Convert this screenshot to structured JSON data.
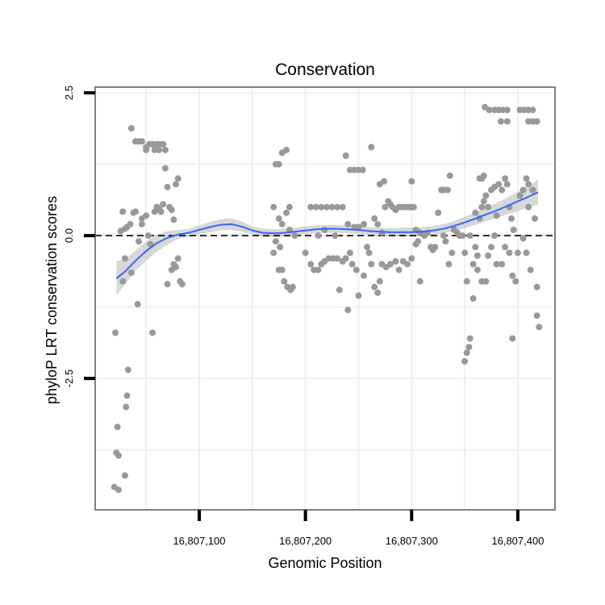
{
  "chart_data": {
    "type": "scatter",
    "title": "Conservation",
    "xlabel": "Genomic Position",
    "ylabel": "phyloP LRT conservation scores",
    "xlim": [
      16807002,
      16807435
    ],
    "ylim": [
      -4.8,
      2.6
    ],
    "xticks": [
      16807100,
      16807200,
      16807300,
      16807400
    ],
    "xtick_labels": [
      "16,807,100",
      "16,807,200",
      "16,807,300",
      "16,807,400"
    ],
    "yticks": [
      -2.5,
      0.0,
      2.5
    ],
    "ytick_labels": [
      "-2.5",
      "0.0",
      "2.5"
    ],
    "grid": true,
    "reference_line": {
      "y": 0,
      "style": "dashed",
      "color": "#000000"
    },
    "colors": {
      "points": "#999999",
      "smooth": "#3366ff",
      "ribbon": "#bebebe",
      "frame": "#7f7f7f",
      "grid": "#f0f0f0"
    },
    "series": [
      {
        "kind": "points",
        "points": [
          [
            16807020,
            -4.4
          ],
          [
            16807024,
            -4.45
          ],
          [
            16807021,
            -1.7
          ],
          [
            16807023,
            -3.35
          ],
          [
            16807022,
            -3.8
          ],
          [
            16807024,
            -3.85
          ],
          [
            16807030,
            -4.2
          ],
          [
            16807031,
            -3.0
          ],
          [
            16807032,
            -2.8
          ],
          [
            16807033,
            -2.35
          ],
          [
            16807028,
            0.42
          ],
          [
            16807026,
            0.08
          ],
          [
            16807030,
            0.12
          ],
          [
            16807032,
            0.15
          ],
          [
            16807035,
            0.2
          ],
          [
            16807030,
            -0.4
          ],
          [
            16807028,
            -0.8
          ],
          [
            16807036,
            -0.65
          ],
          [
            16807038,
            0.4
          ],
          [
            16807040,
            0.42
          ],
          [
            16807036,
            1.88
          ],
          [
            16807040,
            1.65
          ],
          [
            16807043,
            1.65
          ],
          [
            16807046,
            1.65
          ],
          [
            16807050,
            1.55
          ],
          [
            16807053,
            1.6
          ],
          [
            16807056,
            1.6
          ],
          [
            16807060,
            1.6
          ],
          [
            16807063,
            1.6
          ],
          [
            16807066,
            1.6
          ],
          [
            16807050,
            1.5
          ],
          [
            16807058,
            1.5
          ],
          [
            16807062,
            1.5
          ],
          [
            16807068,
            1.5
          ],
          [
            16807042,
            -1.2
          ],
          [
            16807043,
            -0.1
          ],
          [
            16807046,
            0.2
          ],
          [
            16807046,
            0.3
          ],
          [
            16807050,
            0.35
          ],
          [
            16807052,
            0.0
          ],
          [
            16807054,
            -0.15
          ],
          [
            16807056,
            -1.7
          ],
          [
            16807058,
            0.42
          ],
          [
            16807060,
            0.5
          ],
          [
            16807062,
            0.48
          ],
          [
            16807064,
            0.42
          ],
          [
            16807066,
            0.55
          ],
          [
            16807068,
            1.18
          ],
          [
            16807070,
            0.85
          ],
          [
            16807072,
            0.5
          ],
          [
            16807074,
            0.45
          ],
          [
            16807076,
            0.28
          ],
          [
            16807070,
            -0.85
          ],
          [
            16807074,
            -0.6
          ],
          [
            16807076,
            -0.5
          ],
          [
            16807078,
            -0.55
          ],
          [
            16807080,
            -0.4
          ],
          [
            16807082,
            -0.8
          ],
          [
            16807084,
            -0.85
          ],
          [
            16807078,
            0.9
          ],
          [
            16807080,
            1.0
          ],
          [
            16807172,
            1.25
          ],
          [
            16807175,
            1.25
          ],
          [
            16807178,
            1.45
          ],
          [
            16807182,
            1.5
          ],
          [
            16807170,
            0.5
          ],
          [
            16807175,
            0.3
          ],
          [
            16807178,
            0.2
          ],
          [
            16807182,
            0.4
          ],
          [
            16807185,
            0.5
          ],
          [
            16807170,
            -0.3
          ],
          [
            16807175,
            -0.6
          ],
          [
            16807178,
            -0.6
          ],
          [
            16807180,
            -0.8
          ],
          [
            16807183,
            -0.9
          ],
          [
            16807186,
            -0.95
          ],
          [
            16807188,
            -0.9
          ],
          [
            16807172,
            -0.1
          ],
          [
            16807176,
            -0.2
          ],
          [
            16807185,
            0.1
          ],
          [
            16807190,
            0.0
          ],
          [
            16807200,
            -0.3
          ],
          [
            16807205,
            0.5
          ],
          [
            16807210,
            0.5
          ],
          [
            16807215,
            0.5
          ],
          [
            16807220,
            0.5
          ],
          [
            16807225,
            0.5
          ],
          [
            16807230,
            0.5
          ],
          [
            16807235,
            0.5
          ],
          [
            16807205,
            -0.5
          ],
          [
            16807208,
            -0.6
          ],
          [
            16807212,
            -0.6
          ],
          [
            16807215,
            -0.5
          ],
          [
            16807218,
            -0.45
          ],
          [
            16807222,
            -0.4
          ],
          [
            16807226,
            -0.4
          ],
          [
            16807230,
            -0.4
          ],
          [
            16807235,
            -0.45
          ],
          [
            16807238,
            -0.4
          ],
          [
            16807242,
            -0.3
          ],
          [
            16807212,
            0.0
          ],
          [
            16807218,
            0.1
          ],
          [
            16807228,
            0.0
          ],
          [
            16807232,
            -0.95
          ],
          [
            16807240,
            -1.3
          ],
          [
            16807238,
            1.4
          ],
          [
            16807242,
            1.15
          ],
          [
            16807246,
            1.15
          ],
          [
            16807250,
            1.15
          ],
          [
            16807254,
            1.15
          ],
          [
            16807240,
            0.2
          ],
          [
            16807246,
            0.15
          ],
          [
            16807250,
            0.15
          ],
          [
            16807255,
            0.2
          ],
          [
            16807244,
            -0.5
          ],
          [
            16807248,
            -0.6
          ],
          [
            16807250,
            -1.05
          ],
          [
            16807255,
            -0.7
          ],
          [
            16807258,
            -0.2
          ],
          [
            16807260,
            -0.3
          ],
          [
            16807262,
            -0.5
          ],
          [
            16807265,
            -0.9
          ],
          [
            16807268,
            -1.0
          ],
          [
            16807270,
            -0.8
          ],
          [
            16807262,
            1.55
          ],
          [
            16807265,
            0.3
          ],
          [
            16807268,
            0.2
          ],
          [
            16807272,
            0.05
          ],
          [
            16807275,
            0.5
          ],
          [
            16807278,
            0.6
          ],
          [
            16807280,
            0.55
          ],
          [
            16807282,
            0.5
          ],
          [
            16807285,
            0.45
          ],
          [
            16807288,
            0.5
          ],
          [
            16807290,
            0.5
          ],
          [
            16807292,
            0.5
          ],
          [
            16807295,
            0.5
          ],
          [
            16807298,
            0.5
          ],
          [
            16807300,
            0.5
          ],
          [
            16807302,
            0.5
          ],
          [
            16807270,
            0.9
          ],
          [
            16807274,
            0.95
          ],
          [
            16807300,
            0.95
          ],
          [
            16807272,
            -0.5
          ],
          [
            16807276,
            -0.55
          ],
          [
            16807280,
            -0.5
          ],
          [
            16807285,
            -0.45
          ],
          [
            16807288,
            -0.6
          ],
          [
            16807292,
            -0.45
          ],
          [
            16807296,
            -0.5
          ],
          [
            16807300,
            -0.4
          ],
          [
            16807304,
            -0.15
          ],
          [
            16807306,
            -0.1
          ],
          [
            16807308,
            -0.8
          ],
          [
            16807304,
            0.1
          ],
          [
            16807308,
            0.05
          ],
          [
            16807312,
            0.0
          ],
          [
            16807315,
            0.05
          ],
          [
            16807318,
            -0.2
          ],
          [
            16807320,
            -0.25
          ],
          [
            16807322,
            -0.2
          ],
          [
            16807325,
            0.4
          ],
          [
            16807328,
            0.8
          ],
          [
            16807330,
            0.8
          ],
          [
            16807334,
            0.8
          ],
          [
            16807336,
            1.05
          ],
          [
            16807330,
            0.0
          ],
          [
            16807332,
            -0.1
          ],
          [
            16807335,
            -0.5
          ],
          [
            16807338,
            -0.3
          ],
          [
            16807340,
            0.1
          ],
          [
            16807343,
            0.05
          ],
          [
            16807345,
            0.0
          ],
          [
            16807348,
            0.0
          ],
          [
            16807350,
            -2.2
          ],
          [
            16807352,
            -2.05
          ],
          [
            16807354,
            -1.95
          ],
          [
            16807355,
            -1.8
          ],
          [
            16807350,
            -0.3
          ],
          [
            16807352,
            -0.8
          ],
          [
            16807355,
            0.0
          ],
          [
            16807358,
            -0.5
          ],
          [
            16807360,
            -0.2
          ],
          [
            16807362,
            -0.35
          ],
          [
            16807358,
            -1.1
          ],
          [
            16807362,
            -0.6
          ],
          [
            16807360,
            0.4
          ],
          [
            16807364,
            0.3
          ],
          [
            16807366,
            0.5
          ],
          [
            16807368,
            0.6
          ],
          [
            16807370,
            0.7
          ],
          [
            16807364,
            1.0
          ],
          [
            16807366,
            1.0
          ],
          [
            16807368,
            1.05
          ],
          [
            16807372,
            -0.35
          ],
          [
            16807375,
            -0.2
          ],
          [
            16807378,
            0.0
          ],
          [
            16807380,
            0.35
          ],
          [
            16807366,
            -0.8
          ],
          [
            16807370,
            -0.8
          ],
          [
            16807372,
            0.5
          ],
          [
            16807375,
            0.8
          ],
          [
            16807378,
            0.85
          ],
          [
            16807382,
            0.9
          ],
          [
            16807385,
            0.8
          ],
          [
            16807388,
            1.0
          ],
          [
            16807390,
            0.9
          ],
          [
            16807392,
            0.5
          ],
          [
            16807394,
            0.3
          ],
          [
            16807396,
            0.1
          ],
          [
            16807380,
            -0.5
          ],
          [
            16807385,
            -0.5
          ],
          [
            16807388,
            -0.2
          ],
          [
            16807392,
            -0.3
          ],
          [
            16807395,
            -0.7
          ],
          [
            16807398,
            -0.8
          ],
          [
            16807400,
            -0.3
          ],
          [
            16807402,
            0.7
          ],
          [
            16807405,
            0.8
          ],
          [
            16807408,
            1.0
          ],
          [
            16807410,
            0.9
          ],
          [
            16807405,
            -0.05
          ],
          [
            16807408,
            -0.3
          ],
          [
            16807410,
            0.5
          ],
          [
            16807414,
            0.8
          ],
          [
            16807416,
            0.3
          ],
          [
            16807418,
            -1.4
          ],
          [
            16807420,
            -1.6
          ],
          [
            16807418,
            -0.9
          ],
          [
            16807395,
            -1.8
          ],
          [
            16807412,
            -0.6
          ],
          [
            16807369,
            2.25
          ],
          [
            16807373,
            2.2
          ],
          [
            16807378,
            2.2
          ],
          [
            16807382,
            2.2
          ],
          [
            16807386,
            2.2
          ],
          [
            16807390,
            2.2
          ],
          [
            16807402,
            2.2
          ],
          [
            16807406,
            2.2
          ],
          [
            16807410,
            2.2
          ],
          [
            16807414,
            2.2
          ],
          [
            16807384,
            2.0
          ],
          [
            16807390,
            2.0
          ],
          [
            16807410,
            2.0
          ],
          [
            16807414,
            2.0
          ],
          [
            16807418,
            2.0
          ]
        ]
      },
      {
        "kind": "smooth",
        "x": [
          16807022,
          16807030,
          16807040,
          16807050,
          16807060,
          16807070,
          16807080,
          16807090,
          16807100,
          16807110,
          16807120,
          16807130,
          16807140,
          16807150,
          16807160,
          16807170,
          16807180,
          16807190,
          16807200,
          16807210,
          16807220,
          16807230,
          16807240,
          16807250,
          16807260,
          16807270,
          16807280,
          16807290,
          16807300,
          16807310,
          16807320,
          16807330,
          16807340,
          16807350,
          16807360,
          16807370,
          16807380,
          16807390,
          16807400,
          16807410,
          16807419
        ],
        "y": [
          -0.75,
          -0.63,
          -0.44,
          -0.27,
          -0.13,
          -0.04,
          0.02,
          0.05,
          0.1,
          0.15,
          0.19,
          0.2,
          0.16,
          0.09,
          0.05,
          0.04,
          0.05,
          0.07,
          0.09,
          0.11,
          0.12,
          0.12,
          0.11,
          0.1,
          0.08,
          0.07,
          0.06,
          0.06,
          0.06,
          0.07,
          0.09,
          0.12,
          0.17,
          0.23,
          0.3,
          0.37,
          0.44,
          0.52,
          0.6,
          0.68,
          0.76
        ],
        "lower": [
          -1.05,
          -0.85,
          -0.62,
          -0.44,
          -0.28,
          -0.16,
          -0.06,
          -0.02,
          0.02,
          0.06,
          0.09,
          0.1,
          0.07,
          0.02,
          -0.02,
          -0.03,
          -0.02,
          0.0,
          0.02,
          0.04,
          0.05,
          0.05,
          0.04,
          0.03,
          0.01,
          0.0,
          -0.01,
          -0.02,
          -0.02,
          -0.01,
          0.01,
          0.04,
          0.08,
          0.13,
          0.19,
          0.25,
          0.31,
          0.37,
          0.43,
          0.49,
          0.54
        ],
        "upper": [
          -0.45,
          -0.41,
          -0.26,
          -0.1,
          0.02,
          0.08,
          0.1,
          0.12,
          0.18,
          0.24,
          0.29,
          0.3,
          0.25,
          0.16,
          0.12,
          0.11,
          0.12,
          0.14,
          0.16,
          0.18,
          0.19,
          0.19,
          0.18,
          0.17,
          0.15,
          0.14,
          0.13,
          0.14,
          0.14,
          0.15,
          0.17,
          0.2,
          0.26,
          0.33,
          0.41,
          0.49,
          0.57,
          0.67,
          0.77,
          0.87,
          0.98
        ]
      }
    ]
  }
}
